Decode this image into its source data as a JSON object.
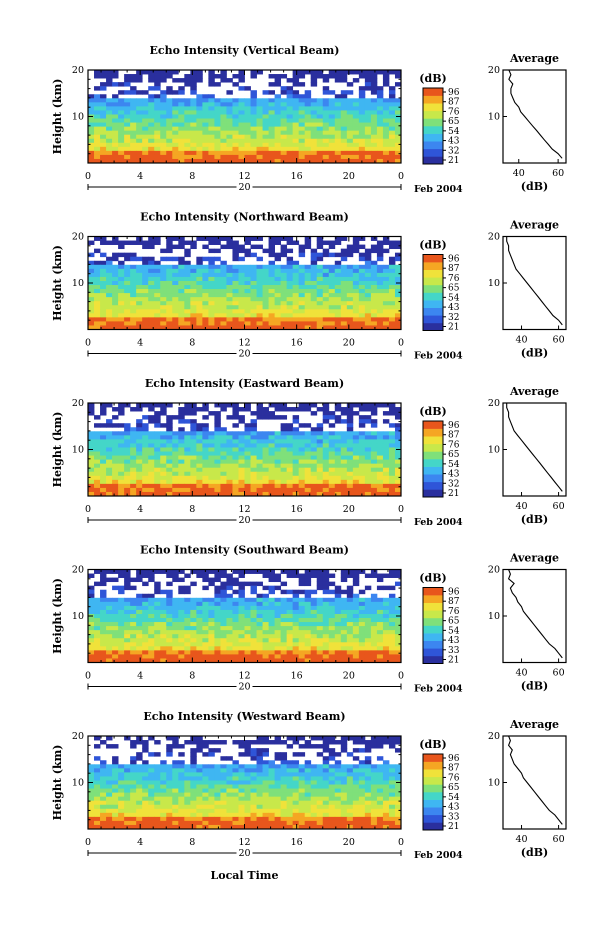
{
  "figure": {
    "xlabel": "Local Time",
    "date_day": "20",
    "date_label": "Feb 2004",
    "colorbar_unit": "(dB)",
    "avg_title": "Average",
    "avg_xlabel": "(dB)",
    "colorscale": [
      "#2a2f9e",
      "#2f55d8",
      "#3c86f0",
      "#3fb6f2",
      "#44d6c8",
      "#7fe07a",
      "#c8e84a",
      "#f0e23a",
      "#f5a623",
      "#e8561c"
    ]
  },
  "chart_data": [
    {
      "type": "heatmap",
      "title": "Echo Intensity (Vertical Beam)",
      "ylabel": "Height (km)",
      "x_ticks": [
        "0",
        "4",
        "8",
        "12",
        "16",
        "20",
        "0"
      ],
      "y_ticks": [
        "10",
        "20"
      ],
      "xlim": [
        0,
        24
      ],
      "ylim": [
        0,
        20
      ],
      "colorbar_ticks": [
        "96",
        "87",
        "76",
        "65",
        "54",
        "43",
        "32",
        "21"
      ],
      "average_profile": {
        "xticks": [
          "40",
          "60"
        ],
        "xlim": [
          32,
          64
        ],
        "height": [
          1,
          2,
          3,
          4,
          5,
          6,
          7,
          8,
          9,
          10,
          11,
          12,
          13,
          14,
          15,
          16,
          17,
          18,
          19,
          20
        ],
        "db": [
          62,
          60,
          57,
          55,
          53,
          51,
          49,
          47,
          45,
          43,
          41,
          40,
          38,
          37,
          36,
          36,
          37,
          35,
          36,
          35
        ]
      }
    },
    {
      "type": "heatmap",
      "title": "Echo Intensity (Northward Beam)",
      "ylabel": "Height (km)",
      "x_ticks": [
        "0",
        "4",
        "8",
        "12",
        "16",
        "20",
        "0"
      ],
      "y_ticks": [
        "10",
        "20"
      ],
      "xlim": [
        0,
        24
      ],
      "ylim": [
        0,
        20
      ],
      "colorbar_ticks": [
        "96",
        "87",
        "76",
        "65",
        "54",
        "43",
        "32",
        "21"
      ],
      "average_profile": {
        "xticks": [
          "40",
          "60"
        ],
        "xlim": [
          30,
          64
        ],
        "height": [
          1,
          2,
          3,
          4,
          5,
          6,
          7,
          8,
          9,
          10,
          11,
          12,
          13,
          14,
          15,
          16,
          17,
          18,
          19,
          20
        ],
        "db": [
          62,
          60,
          57,
          55,
          53,
          51,
          49,
          47,
          45,
          43,
          41,
          39,
          37,
          36,
          35,
          34,
          33,
          33,
          32,
          32
        ]
      }
    },
    {
      "type": "heatmap",
      "title": "Echo Intensity (Eastward Beam)",
      "ylabel": "Height (km)",
      "x_ticks": [
        "0",
        "4",
        "8",
        "12",
        "16",
        "20",
        "0"
      ],
      "y_ticks": [
        "10",
        "20"
      ],
      "xlim": [
        0,
        24
      ],
      "ylim": [
        0,
        20
      ],
      "colorbar_ticks": [
        "96",
        "87",
        "76",
        "65",
        "54",
        "43",
        "32",
        "21"
      ],
      "average_profile": {
        "xticks": [
          "40",
          "60"
        ],
        "xlim": [
          30,
          64
        ],
        "height": [
          1,
          2,
          3,
          4,
          5,
          6,
          7,
          8,
          9,
          10,
          11,
          12,
          13,
          14,
          15,
          16,
          17,
          18,
          19,
          20
        ],
        "db": [
          62,
          60,
          58,
          56,
          54,
          52,
          50,
          48,
          46,
          44,
          42,
          40,
          38,
          36,
          35,
          34,
          33,
          33,
          32,
          32
        ]
      }
    },
    {
      "type": "heatmap",
      "title": "Echo Intensity (Southward Beam)",
      "ylabel": "Height (km)",
      "x_ticks": [
        "0",
        "4",
        "8",
        "12",
        "16",
        "20",
        "0"
      ],
      "y_ticks": [
        "10",
        "20"
      ],
      "xlim": [
        0,
        24
      ],
      "ylim": [
        0,
        20
      ],
      "colorbar_ticks": [
        "96",
        "87",
        "76",
        "65",
        "54",
        "43",
        "33",
        "21"
      ],
      "average_profile": {
        "xticks": [
          "40",
          "60"
        ],
        "xlim": [
          30,
          64
        ],
        "height": [
          1,
          2,
          3,
          4,
          5,
          6,
          7,
          8,
          9,
          10,
          11,
          12,
          13,
          14,
          15,
          16,
          17,
          18,
          19,
          20
        ],
        "db": [
          62,
          60,
          58,
          55,
          53,
          51,
          49,
          47,
          45,
          43,
          41,
          40,
          38,
          37,
          35,
          34,
          36,
          33,
          34,
          33
        ]
      }
    },
    {
      "type": "heatmap",
      "title": "Echo Intensity (Westward Beam)",
      "ylabel": "Height (km)",
      "x_ticks": [
        "0",
        "4",
        "8",
        "12",
        "16",
        "20",
        "0"
      ],
      "y_ticks": [
        "10",
        "20"
      ],
      "xlim": [
        0,
        24
      ],
      "ylim": [
        0,
        20
      ],
      "colorbar_ticks": [
        "96",
        "87",
        "76",
        "65",
        "54",
        "43",
        "33",
        "21"
      ],
      "average_profile": {
        "xticks": [
          "40",
          "60"
        ],
        "xlim": [
          30,
          64
        ],
        "height": [
          1,
          2,
          3,
          4,
          5,
          6,
          7,
          8,
          9,
          10,
          11,
          12,
          13,
          14,
          15,
          16,
          17,
          18,
          19,
          20
        ],
        "db": [
          62,
          60,
          58,
          55,
          53,
          51,
          49,
          47,
          45,
          43,
          41,
          40,
          38,
          36,
          35,
          34,
          35,
          33,
          34,
          33
        ]
      }
    }
  ]
}
